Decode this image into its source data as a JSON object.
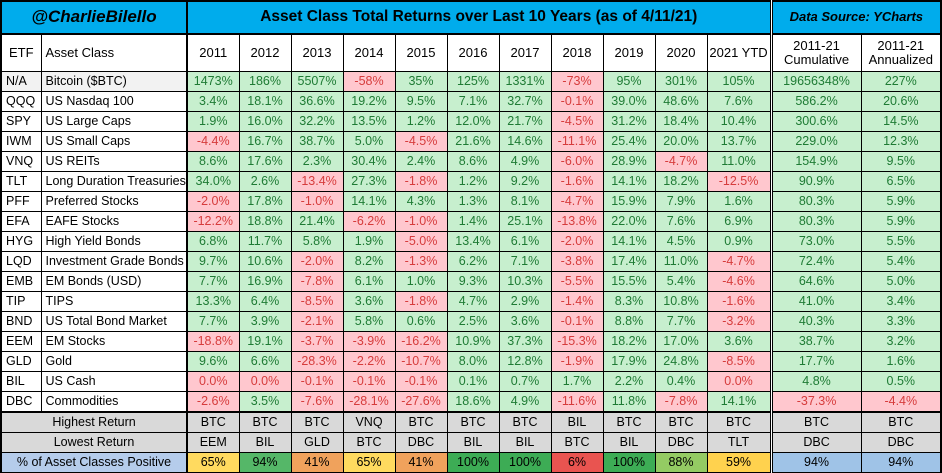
{
  "header": {
    "handle": "@CharlieBilello",
    "title": "Asset Class Total Returns over Last 10 Years (as of 4/11/21)",
    "source": "Data Source: YCharts"
  },
  "colors": {
    "band_blue": "#00ACEC",
    "wide_header_gray": "#ABABAB",
    "summary_gray": "#D9D9D9",
    "label_blue": "#B5CCEB",
    "positive_bg": "#C7EFCE",
    "positive_text": "#1E7B34",
    "negative_bg": "#FFC7CE",
    "negative_text": "#D63C3C"
  },
  "chart_data": {
    "type": "table",
    "title": "Asset Class Total Returns over Last 10 Years (as of 4/11/21)",
    "columns": [
      "ETF",
      "Asset Class",
      "2011",
      "2012",
      "2013",
      "2014",
      "2015",
      "2016",
      "2017",
      "2018",
      "2019",
      "2020",
      "2021 YTD"
    ],
    "wide_columns": [
      {
        "top": "2011-21",
        "bottom": "Cumulative"
      },
      {
        "top": "2011-21",
        "bottom": "Annualized"
      }
    ],
    "rows": [
      {
        "etf": "N/A",
        "asset_class": "Bitcoin ($BTC)",
        "values": [
          "1473%",
          "186%",
          "5507%",
          "-58%",
          "35%",
          "125%",
          "1331%",
          "-73%",
          "95%",
          "301%",
          "105%",
          "19656348%",
          "227%"
        ]
      },
      {
        "etf": "QQQ",
        "asset_class": "US Nasdaq 100",
        "values": [
          "3.4%",
          "18.1%",
          "36.6%",
          "19.2%",
          "9.5%",
          "7.1%",
          "32.7%",
          "-0.1%",
          "39.0%",
          "48.6%",
          "7.6%",
          "586.2%",
          "20.6%"
        ]
      },
      {
        "etf": "SPY",
        "asset_class": "US Large Caps",
        "values": [
          "1.9%",
          "16.0%",
          "32.2%",
          "13.5%",
          "1.2%",
          "12.0%",
          "21.7%",
          "-4.5%",
          "31.2%",
          "18.4%",
          "10.4%",
          "300.6%",
          "14.5%"
        ]
      },
      {
        "etf": "IWM",
        "asset_class": "US Small Caps",
        "values": [
          "-4.4%",
          "16.7%",
          "38.7%",
          "5.0%",
          "-4.5%",
          "21.6%",
          "14.6%",
          "-11.1%",
          "25.4%",
          "20.0%",
          "13.7%",
          "229.0%",
          "12.3%"
        ]
      },
      {
        "etf": "VNQ",
        "asset_class": "US REITs",
        "values": [
          "8.6%",
          "17.6%",
          "2.3%",
          "30.4%",
          "2.4%",
          "8.6%",
          "4.9%",
          "-6.0%",
          "28.9%",
          "-4.7%",
          "11.0%",
          "154.9%",
          "9.5%"
        ]
      },
      {
        "etf": "TLT",
        "asset_class": "Long Duration Treasuries",
        "values": [
          "34.0%",
          "2.6%",
          "-13.4%",
          "27.3%",
          "-1.8%",
          "1.2%",
          "9.2%",
          "-1.6%",
          "14.1%",
          "18.2%",
          "-12.5%",
          "90.9%",
          "6.5%"
        ]
      },
      {
        "etf": "PFF",
        "asset_class": "Preferred Stocks",
        "values": [
          "-2.0%",
          "17.8%",
          "-1.0%",
          "14.1%",
          "4.3%",
          "1.3%",
          "8.1%",
          "-4.7%",
          "15.9%",
          "7.9%",
          "1.6%",
          "80.3%",
          "5.9%"
        ]
      },
      {
        "etf": "EFA",
        "asset_class": "EAFE Stocks",
        "values": [
          "-12.2%",
          "18.8%",
          "21.4%",
          "-6.2%",
          "-1.0%",
          "1.4%",
          "25.1%",
          "-13.8%",
          "22.0%",
          "7.6%",
          "6.9%",
          "80.3%",
          "5.9%"
        ]
      },
      {
        "etf": "HYG",
        "asset_class": "High Yield Bonds",
        "values": [
          "6.8%",
          "11.7%",
          "5.8%",
          "1.9%",
          "-5.0%",
          "13.4%",
          "6.1%",
          "-2.0%",
          "14.1%",
          "4.5%",
          "0.9%",
          "73.0%",
          "5.5%"
        ]
      },
      {
        "etf": "LQD",
        "asset_class": "Investment Grade Bonds",
        "values": [
          "9.7%",
          "10.6%",
          "-2.0%",
          "8.2%",
          "-1.3%",
          "6.2%",
          "7.1%",
          "-3.8%",
          "17.4%",
          "11.0%",
          "-4.7%",
          "72.4%",
          "5.4%"
        ]
      },
      {
        "etf": "EMB",
        "asset_class": "EM Bonds (USD)",
        "values": [
          "7.7%",
          "16.9%",
          "-7.8%",
          "6.1%",
          "1.0%",
          "9.3%",
          "10.3%",
          "-5.5%",
          "15.5%",
          "5.4%",
          "-4.6%",
          "64.6%",
          "5.0%"
        ]
      },
      {
        "etf": "TIP",
        "asset_class": "TIPS",
        "values": [
          "13.3%",
          "6.4%",
          "-8.5%",
          "3.6%",
          "-1.8%",
          "4.7%",
          "2.9%",
          "-1.4%",
          "8.3%",
          "10.8%",
          "-1.6%",
          "41.0%",
          "3.4%"
        ]
      },
      {
        "etf": "BND",
        "asset_class": "US Total Bond Market",
        "values": [
          "7.7%",
          "3.9%",
          "-2.1%",
          "5.8%",
          "0.6%",
          "2.5%",
          "3.6%",
          "-0.1%",
          "8.8%",
          "7.7%",
          "-3.2%",
          "40.3%",
          "3.3%"
        ]
      },
      {
        "etf": "EEM",
        "asset_class": "EM Stocks",
        "values": [
          "-18.8%",
          "19.1%",
          "-3.7%",
          "-3.9%",
          "-16.2%",
          "10.9%",
          "37.3%",
          "-15.3%",
          "18.2%",
          "17.0%",
          "3.6%",
          "38.7%",
          "3.2%"
        ]
      },
      {
        "etf": "GLD",
        "asset_class": "Gold",
        "values": [
          "9.6%",
          "6.6%",
          "-28.3%",
          "-2.2%",
          "-10.7%",
          "8.0%",
          "12.8%",
          "-1.9%",
          "17.9%",
          "24.8%",
          "-8.5%",
          "17.7%",
          "1.6%"
        ]
      },
      {
        "etf": "BIL",
        "asset_class": "US Cash",
        "values": [
          "0.0%",
          "0.0%",
          "-0.1%",
          "-0.1%",
          "-0.1%",
          "0.1%",
          "0.7%",
          "1.7%",
          "2.2%",
          "0.4%",
          "0.0%",
          "4.8%",
          "0.5%"
        ]
      },
      {
        "etf": "DBC",
        "asset_class": "Commodities",
        "values": [
          "-2.6%",
          "3.5%",
          "-7.6%",
          "-28.1%",
          "-27.6%",
          "18.6%",
          "4.9%",
          "-11.6%",
          "11.8%",
          "-7.8%",
          "14.1%",
          "-37.3%",
          "-4.4%"
        ]
      }
    ],
    "highest_return": {
      "label": "Highest Return",
      "values": [
        "BTC",
        "BTC",
        "BTC",
        "VNQ",
        "BTC",
        "BTC",
        "BTC",
        "BIL",
        "BTC",
        "BTC",
        "BTC",
        "BTC",
        "BTC"
      ]
    },
    "lowest_return": {
      "label": "Lowest Return",
      "values": [
        "EEM",
        "BIL",
        "GLD",
        "BTC",
        "DBC",
        "BIL",
        "BIL",
        "BTC",
        "BIL",
        "DBC",
        "TLT",
        "DBC",
        "DBC"
      ]
    },
    "percent_positive": {
      "label": "% of Asset Classes Positive",
      "values": [
        "65%",
        "94%",
        "41%",
        "65%",
        "41%",
        "100%",
        "100%",
        "6%",
        "100%",
        "88%",
        "59%",
        "94%",
        "94%"
      ],
      "colors": [
        "#FFDA5F",
        "#55B768",
        "#F0A25C",
        "#FFDA5F",
        "#F0A25C",
        "#3DAC55",
        "#3DAC55",
        "#E95450",
        "#3DAC55",
        "#94CB63",
        "#FFD24E",
        "#9FC3E7",
        "#9FC3E7"
      ]
    }
  }
}
